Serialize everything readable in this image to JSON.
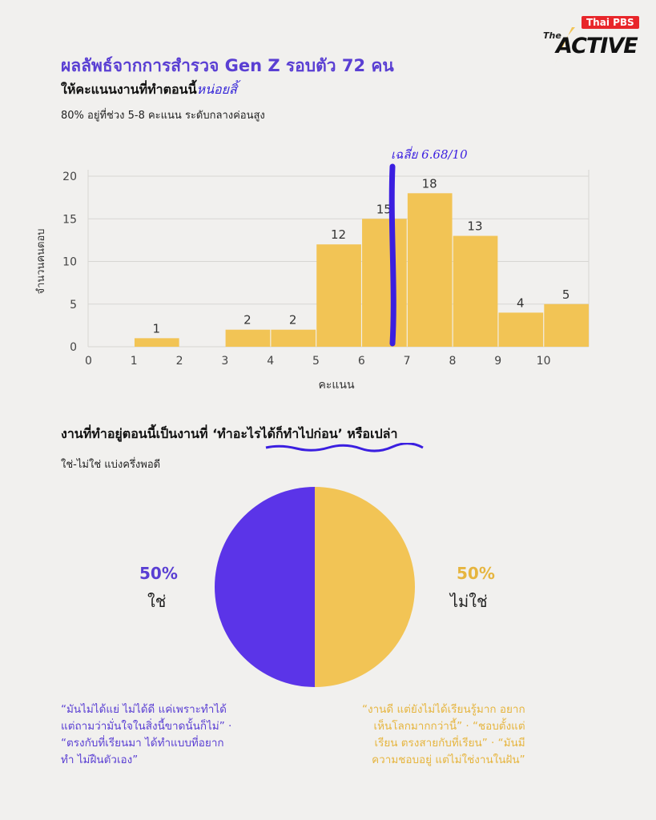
{
  "brand": {
    "badge": "Thai PBS",
    "the": "The",
    "name": "ACTIVE"
  },
  "header": {
    "title": "ผลลัพธ์จากการสำรวจ Gen Z รอบตัว 72 คน",
    "subtitle_main": "ให้คะแนนงานที่ทำตอนนี้",
    "subtitle_handwritten": "หน่อยสิ้",
    "summary": "80% อยู่ที่ช่วง 5-8 คะแนน ระดับกลางค่อนสูง"
  },
  "section2": {
    "question_prefix": "งานที่ทำอยู่ตอนนี้เป็นงานที่ ",
    "question_highlight": "‘ทำอะไรได้ก็ทำไปก่อน’",
    "question_suffix": " หรือเปล่า",
    "summary": "ใช่-ไม่ใช่ แบ่งครึ่งพอดี"
  },
  "quotes": {
    "left": [
      "“มันไม่ได้แย่ ไม่ได้ดี แค่เพราะทำได้",
      "แต่ถามว่ามั่นใจในสิ่งนี้ขาดนั้นก็ไม่” ·",
      "“ตรงกับที่เรียนมา ได้ทำแบบที่อยาก",
      "ทำ ไม่ฝืนตัวเอง”"
    ],
    "right": [
      "“งานดี แต่ยังไม่ได้เรียนรู้มาก อยาก",
      "เห็นโลกมากกว่านี้” · “ชอบตั้งแต่",
      "เรียน ตรงสายกับที่เรียน” · “มันมี",
      "ความชอบอยู่ แต่ไม่ใช่งานในฝัน”"
    ]
  },
  "colors": {
    "bar": "#f2c455",
    "purple": "#5a3fd3",
    "mean_line": "#3b1fe0",
    "pie_yes": "#5b34e8",
    "pie_no": "#f2c455",
    "yellow_text": "#e6b53f"
  },
  "chart_data": [
    {
      "type": "bar",
      "categories": [
        "0",
        "1",
        "2",
        "3",
        "4",
        "5",
        "6",
        "7",
        "8",
        "9",
        "10"
      ],
      "values": [
        0,
        1,
        0,
        2,
        2,
        12,
        15,
        18,
        13,
        4,
        5
      ],
      "xlabel": "คะแนน",
      "ylabel": "จำนวนคนตอบ",
      "ylim": [
        0,
        20
      ],
      "yticks": [
        0,
        5,
        10,
        15,
        20
      ],
      "grid": true,
      "mean": 6.68,
      "mean_label": "เฉลี่ย 6.68/10"
    },
    {
      "type": "pie",
      "slices": [
        {
          "label": "ใช่",
          "value": 50,
          "display": "50%"
        },
        {
          "label": "ไม่ใช่",
          "value": 50,
          "display": "50%"
        }
      ]
    }
  ]
}
